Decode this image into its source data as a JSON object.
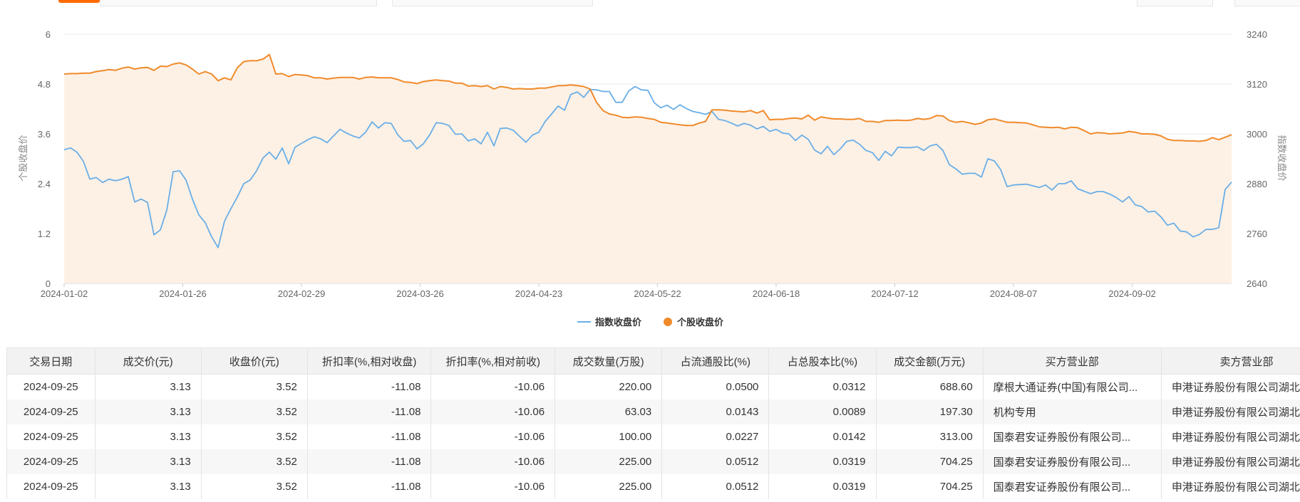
{
  "chart_data": {
    "type": "line",
    "x_ticks": [
      "2024-01-02",
      "2024-01-26",
      "2024-02-29",
      "2024-03-26",
      "2024-04-23",
      "2024-05-22",
      "2024-06-18",
      "2024-07-12",
      "2024-08-07",
      "2024-09-02"
    ],
    "y_left": {
      "label": "个股收盘价",
      "ticks": [
        "0",
        "1.2",
        "2.4",
        "3.6",
        "4.8",
        "6"
      ],
      "range": [
        0,
        6
      ]
    },
    "y_right": {
      "label": "指数收盘价",
      "ticks": [
        "2640",
        "2760",
        "2880",
        "3000",
        "3120",
        "3240"
      ],
      "range": [
        2640,
        3240
      ]
    },
    "series": [
      {
        "name": "指数收盘价",
        "axis": "right",
        "color": "#6aaee6",
        "values": [
          2962,
          2966,
          2956,
          2934,
          2891,
          2895,
          2883,
          2891,
          2887,
          2891,
          2897,
          2836,
          2843,
          2835,
          2757,
          2769,
          2816,
          2909,
          2911,
          2889,
          2843,
          2805,
          2786,
          2752,
          2726,
          2790,
          2820,
          2848,
          2880,
          2889,
          2911,
          2942,
          2956,
          2939,
          2966,
          2928,
          2968,
          2977,
          2986,
          2993,
          2988,
          2979,
          2995,
          3011,
          3002,
          2995,
          2990,
          3004,
          3029,
          3014,
          3027,
          3025,
          2998,
          2982,
          2984,
          2964,
          2976,
          2998,
          3027,
          3025,
          3020,
          2999,
          3000,
          2983,
          2988,
          2976,
          3004,
          2971,
          3013,
          3014,
          3009,
          2994,
          2980,
          2997,
          3004,
          3030,
          3048,
          3067,
          3057,
          3095,
          3101,
          3088,
          3107,
          3106,
          3102,
          3102,
          3076,
          3076,
          3103,
          3114,
          3106,
          3105,
          3075,
          3063,
          3069,
          3059,
          3070,
          3061,
          3054,
          3051,
          3047,
          3054,
          3035,
          3032,
          3026,
          3019,
          3025,
          3021,
          3012,
          3018,
          3006,
          3011,
          3002,
          3000,
          2984,
          2997,
          2987,
          2961,
          2952,
          2970,
          2950,
          2964,
          2982,
          2985,
          2975,
          2960,
          2955,
          2936,
          2958,
          2947,
          2968,
          2967,
          2967,
          2969,
          2960,
          2971,
          2975,
          2960,
          2926,
          2916,
          2903,
          2905,
          2905,
          2896,
          2940,
          2935,
          2914,
          2873,
          2877,
          2878,
          2879,
          2875,
          2871,
          2877,
          2865,
          2880,
          2880,
          2887,
          2868,
          2862,
          2856,
          2861,
          2861,
          2855,
          2847,
          2836,
          2849,
          2829,
          2825,
          2812,
          2814,
          2800,
          2780,
          2785,
          2766,
          2764,
          2752,
          2758,
          2770,
          2770,
          2774,
          2866,
          2884
        ]
      },
      {
        "name": "个股收盘价",
        "axis": "left",
        "color": "#f08a2a",
        "values": [
          5.04,
          5.05,
          5.05,
          5.06,
          5.06,
          5.1,
          5.12,
          5.15,
          5.13,
          5.18,
          5.21,
          5.16,
          5.19,
          5.2,
          5.13,
          5.23,
          5.22,
          5.28,
          5.31,
          5.26,
          5.16,
          5.04,
          5.1,
          5.04,
          4.88,
          4.95,
          4.9,
          5.19,
          5.34,
          5.36,
          5.36,
          5.4,
          5.51,
          5.04,
          5.05,
          4.98,
          5.03,
          5.02,
          5.0,
          4.95,
          4.95,
          4.92,
          4.94,
          4.96,
          4.96,
          4.96,
          4.92,
          4.96,
          4.97,
          4.95,
          4.95,
          4.95,
          4.91,
          4.85,
          4.84,
          4.81,
          4.86,
          4.88,
          4.9,
          4.88,
          4.87,
          4.82,
          4.82,
          4.75,
          4.76,
          4.74,
          4.76,
          4.68,
          4.74,
          4.72,
          4.68,
          4.69,
          4.68,
          4.68,
          4.7,
          4.7,
          4.73,
          4.76,
          4.76,
          4.78,
          4.76,
          4.74,
          4.68,
          4.36,
          4.16,
          4.08,
          4.05,
          4.0,
          3.99,
          4.01,
          4.0,
          3.97,
          3.95,
          3.88,
          3.86,
          3.84,
          3.82,
          3.8,
          3.8,
          3.86,
          3.9,
          4.18,
          4.18,
          4.17,
          4.15,
          4.14,
          4.13,
          4.16,
          4.1,
          4.16,
          3.94,
          3.95,
          3.95,
          3.97,
          3.98,
          3.96,
          4.05,
          3.93,
          4.01,
          3.98,
          3.96,
          3.96,
          3.95,
          3.95,
          3.97,
          3.9,
          3.9,
          3.88,
          3.92,
          3.92,
          3.93,
          3.92,
          3.93,
          3.97,
          3.95,
          3.97,
          4.04,
          4.03,
          3.92,
          3.88,
          3.9,
          3.87,
          3.83,
          3.86,
          3.94,
          3.96,
          3.92,
          3.88,
          3.88,
          3.87,
          3.86,
          3.82,
          3.77,
          3.76,
          3.75,
          3.76,
          3.72,
          3.76,
          3.75,
          3.68,
          3.6,
          3.63,
          3.62,
          3.6,
          3.61,
          3.62,
          3.66,
          3.64,
          3.6,
          3.6,
          3.59,
          3.55,
          3.47,
          3.44,
          3.44,
          3.43,
          3.43,
          3.42,
          3.44,
          3.51,
          3.46,
          3.52,
          3.58
        ]
      }
    ],
    "grid": true,
    "legend": "bottom-center"
  },
  "table": {
    "headers": [
      "交易日期",
      "成交价(元)",
      "收盘价(元)",
      "折扣率(%,相对收盘)",
      "折扣率(%,相对前收)",
      "成交数量(万股)",
      "占流通股比(%)",
      "占总股本比(%)",
      "成交金额(万元)",
      "买方营业部",
      "卖方营业部"
    ],
    "rows": [
      [
        "2024-09-25",
        "3.13",
        "3.52",
        "-11.08",
        "-10.06",
        "220.00",
        "0.0500",
        "0.0312",
        "688.60",
        "摩根大通证券(中国)有限公司...",
        "申港证券股份有限公司湖北..."
      ],
      [
        "2024-09-25",
        "3.13",
        "3.52",
        "-11.08",
        "-10.06",
        "63.03",
        "0.0143",
        "0.0089",
        "197.30",
        "机构专用",
        "申港证券股份有限公司湖北..."
      ],
      [
        "2024-09-25",
        "3.13",
        "3.52",
        "-11.08",
        "-10.06",
        "100.00",
        "0.0227",
        "0.0142",
        "313.00",
        "国泰君安证券股份有限公司...",
        "申港证券股份有限公司湖北..."
      ],
      [
        "2024-09-25",
        "3.13",
        "3.52",
        "-11.08",
        "-10.06",
        "225.00",
        "0.0512",
        "0.0319",
        "704.25",
        "国泰君安证券股份有限公司...",
        "申港证券股份有限公司湖北..."
      ],
      [
        "2024-09-25",
        "3.13",
        "3.52",
        "-11.08",
        "-10.06",
        "225.00",
        "0.0512",
        "0.0319",
        "704.25",
        "国泰君安证券股份有限公司...",
        "申港证券股份有限公司湖北..."
      ]
    ]
  }
}
